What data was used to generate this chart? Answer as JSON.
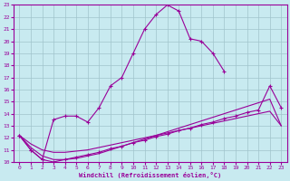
{
  "title": "",
  "xlabel": "Windchill (Refroidissement éolien,°C)",
  "ylabel": "",
  "background_color": "#c8eaf0",
  "grid_color": "#a0c4cc",
  "line_color": "#990099",
  "xlim": [
    -0.5,
    23.5
  ],
  "ylim": [
    10,
    23
  ],
  "xticks": [
    0,
    1,
    2,
    3,
    4,
    5,
    6,
    7,
    8,
    9,
    10,
    11,
    12,
    13,
    14,
    15,
    16,
    17,
    18,
    19,
    20,
    21,
    22,
    23
  ],
  "yticks": [
    10,
    11,
    12,
    13,
    14,
    15,
    16,
    17,
    18,
    19,
    20,
    21,
    22,
    23
  ],
  "line1_x": [
    0,
    1,
    2,
    3,
    4,
    5,
    6,
    7,
    8,
    9,
    10,
    11,
    12,
    13,
    14,
    15,
    16,
    17,
    18
  ],
  "line1_y": [
    12.2,
    11.0,
    10.2,
    13.5,
    13.8,
    13.8,
    13.3,
    14.5,
    16.3,
    17.0,
    19.0,
    21.0,
    22.2,
    23.0,
    22.5,
    20.2,
    20.0,
    19.0,
    17.5
  ],
  "line2_x": [
    0,
    1,
    2,
    3,
    4,
    5,
    6,
    7,
    8,
    9,
    10,
    11,
    12,
    13,
    14,
    15,
    16,
    17,
    18,
    19,
    20,
    21,
    22,
    23
  ],
  "line2_y": [
    12.2,
    11.0,
    10.2,
    10.0,
    10.2,
    10.4,
    10.6,
    10.8,
    11.1,
    11.3,
    11.6,
    11.8,
    12.1,
    12.3,
    12.6,
    12.8,
    13.1,
    13.3,
    13.6,
    13.8,
    14.1,
    14.3,
    16.3,
    14.5
  ],
  "line3_x": [
    0,
    1,
    2,
    3,
    4,
    5,
    6,
    7,
    8,
    9,
    10,
    11,
    12,
    13,
    14,
    15,
    16,
    17,
    18,
    19,
    20,
    21,
    22,
    23
  ],
  "line3_y": [
    12.2,
    11.2,
    10.5,
    10.2,
    10.2,
    10.3,
    10.5,
    10.7,
    11.0,
    11.3,
    11.6,
    11.9,
    12.2,
    12.5,
    12.8,
    13.1,
    13.4,
    13.7,
    14.0,
    14.3,
    14.6,
    14.9,
    15.2,
    13.0
  ],
  "line4_x": [
    0,
    1,
    2,
    3,
    4,
    5,
    6,
    7,
    8,
    9,
    10,
    11,
    12,
    13,
    14,
    15,
    16,
    17,
    18,
    19,
    20,
    21,
    22,
    23
  ],
  "line4_y": [
    12.2,
    11.5,
    11.0,
    10.8,
    10.8,
    10.9,
    11.0,
    11.2,
    11.4,
    11.6,
    11.8,
    12.0,
    12.2,
    12.4,
    12.6,
    12.8,
    13.0,
    13.2,
    13.4,
    13.6,
    13.8,
    14.0,
    14.2,
    13.0
  ]
}
